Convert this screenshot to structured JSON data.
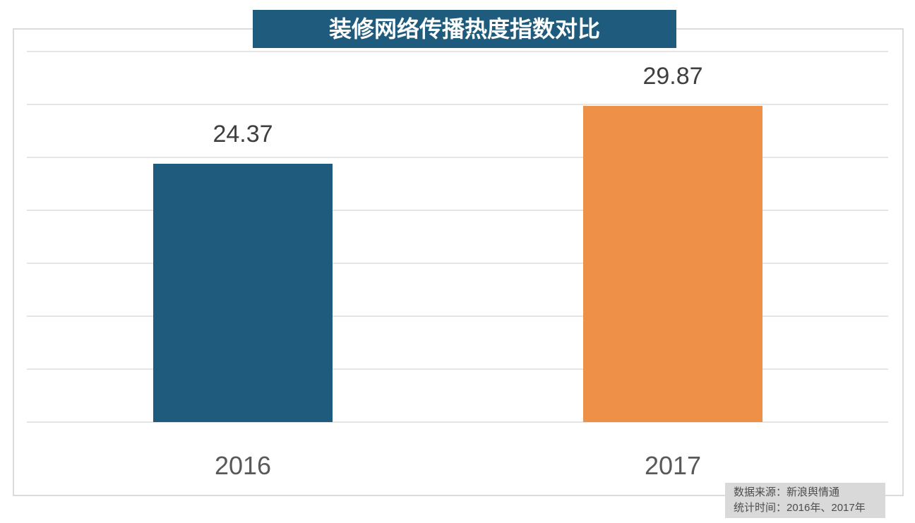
{
  "title": "装修网络传播热度指数对比",
  "chart_data": {
    "type": "bar",
    "title": "装修网络传播热度指数对比",
    "categories": [
      "2016",
      "2017"
    ],
    "values": [
      24.37,
      29.87
    ],
    "series": [
      {
        "name": "装修网络传播热度指数",
        "values": [
          24.37,
          29.87
        ]
      }
    ],
    "xlabel": "",
    "ylabel": "",
    "ylim": [
      0,
      35
    ],
    "gridline_step": 5,
    "grid": "horizontal-only",
    "legend": "none",
    "y_tick_labels_visible": false,
    "bar_colors": [
      "#1E5B7C",
      "#EF9049"
    ]
  },
  "source_box": {
    "line1": "数据来源：新浪舆情通",
    "line2": "统计时间：2016年、2017年"
  },
  "colors": {
    "title_bg": "#1E5B7C",
    "title_text": "#FFFFFF",
    "bar_2016": "#1E5B7C",
    "bar_2017": "#EF9049",
    "gridline": "#E5E5E5",
    "frame_border": "#DBDBDB",
    "value_label_text": "#3F3F3F",
    "axis_label_text": "#595959",
    "source_bg": "#D9D9D9",
    "source_text": "#4D4D4D",
    "background": "#FFFFFF"
  }
}
